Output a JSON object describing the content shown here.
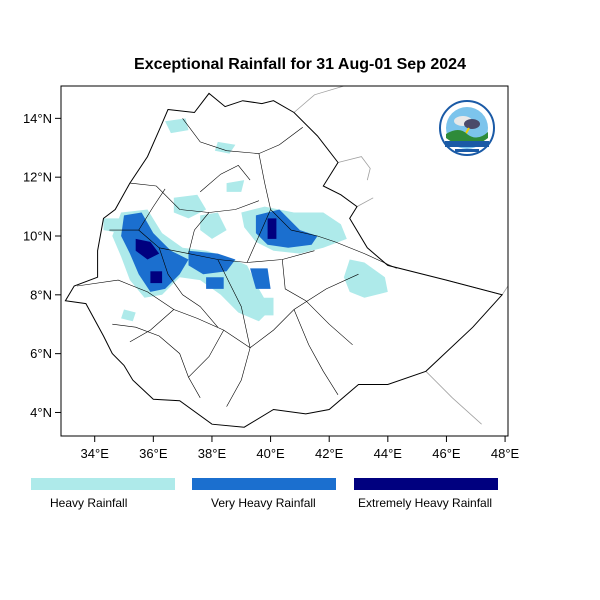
{
  "title": "Exceptional Rainfall for 31 Aug-01 Sep 2024",
  "axes": {
    "x_ticks": [
      {
        "value": 34,
        "label": "34°E"
      },
      {
        "value": 36,
        "label": "36°E"
      },
      {
        "value": 38,
        "label": "38°E"
      },
      {
        "value": 40,
        "label": "40°E"
      },
      {
        "value": 42,
        "label": "42°E"
      },
      {
        "value": 44,
        "label": "44°E"
      },
      {
        "value": 46,
        "label": "46°E"
      },
      {
        "value": 48,
        "label": "48°E"
      }
    ],
    "y_ticks": [
      {
        "value": 4,
        "label": "4°N"
      },
      {
        "value": 6,
        "label": "6°N"
      },
      {
        "value": 8,
        "label": "8°N"
      },
      {
        "value": 10,
        "label": "10°N"
      },
      {
        "value": 12,
        "label": "12°N"
      },
      {
        "value": 14,
        "label": "14°N"
      }
    ],
    "lon_range": [
      32.85,
      48.1
    ],
    "lat_range": [
      3.2,
      15.1
    ]
  },
  "legend": {
    "items": [
      {
        "label": "Heavy Rainfall",
        "color": "#aeeaea"
      },
      {
        "label": "Very Heavy Rainfall",
        "color": "#1b6fcf"
      },
      {
        "label": "Extremely Heavy Rainfall",
        "color": "#00007f"
      }
    ]
  },
  "logo": {
    "icon": "meteorology-agency-logo"
  },
  "colors": {
    "boundary": "#000000",
    "neighbor_boundary": "#a0a0a0"
  },
  "ethiopia_outline": [
    [
      36.5,
      14.3
    ],
    [
      37.4,
      14.2
    ],
    [
      37.9,
      14.85
    ],
    [
      38.45,
      14.4
    ],
    [
      39.05,
      14.6
    ],
    [
      39.7,
      14.5
    ],
    [
      40.1,
      14.6
    ],
    [
      40.8,
      14.2
    ],
    [
      41.6,
      13.4
    ],
    [
      42.3,
      12.5
    ],
    [
      41.8,
      11.7
    ],
    [
      42.4,
      11.4
    ],
    [
      42.95,
      11.0
    ],
    [
      42.7,
      10.6
    ],
    [
      43.3,
      9.6
    ],
    [
      44.0,
      9.0
    ],
    [
      46.0,
      8.5
    ],
    [
      47.9,
      8.0
    ],
    [
      46.9,
      6.9
    ],
    [
      45.3,
      5.4
    ],
    [
      44.0,
      4.95
    ],
    [
      43.0,
      4.95
    ],
    [
      42.0,
      4.1
    ],
    [
      41.2,
      3.95
    ],
    [
      40.1,
      4.1
    ],
    [
      39.1,
      3.5
    ],
    [
      38.0,
      3.6
    ],
    [
      36.9,
      4.4
    ],
    [
      36.0,
      4.45
    ],
    [
      35.3,
      5.1
    ],
    [
      35.0,
      5.6
    ],
    [
      34.6,
      6.0
    ],
    [
      34.3,
      6.6
    ],
    [
      33.7,
      7.7
    ],
    [
      33.0,
      7.8
    ],
    [
      33.3,
      8.3
    ],
    [
      34.1,
      8.6
    ],
    [
      34.1,
      9.5
    ],
    [
      34.3,
      10.6
    ],
    [
      34.7,
      10.9
    ],
    [
      35.2,
      11.8
    ],
    [
      35.8,
      12.7
    ],
    [
      36.2,
      13.6
    ],
    [
      36.5,
      14.3
    ]
  ],
  "neighbor_borders": [
    [
      [
        40.8,
        14.2
      ],
      [
        41.5,
        14.8
      ],
      [
        42.5,
        15.1
      ]
    ],
    [
      [
        42.3,
        12.5
      ],
      [
        43.1,
        12.7
      ],
      [
        43.4,
        12.3
      ],
      [
        43.3,
        11.9
      ]
    ],
    [
      [
        42.95,
        11.0
      ],
      [
        43.5,
        11.3
      ]
    ],
    [
      [
        46.0,
        8.5
      ],
      [
        47.9,
        8.0
      ],
      [
        48.1,
        8.3
      ]
    ],
    [
      [
        45.3,
        5.4
      ],
      [
        46.2,
        4.5
      ],
      [
        47.2,
        3.6
      ]
    ]
  ],
  "region_borders": [
    [
      [
        37.0,
        14.0
      ],
      [
        37.6,
        13.2
      ],
      [
        38.5,
        12.9
      ],
      [
        39.6,
        12.8
      ],
      [
        40.3,
        13.1
      ],
      [
        41.1,
        13.7
      ]
    ],
    [
      [
        39.6,
        12.8
      ],
      [
        39.8,
        11.8
      ],
      [
        40.0,
        10.9
      ],
      [
        40.7,
        10.2
      ],
      [
        41.6,
        10.0
      ],
      [
        42.2,
        9.8
      ]
    ],
    [
      [
        35.2,
        11.8
      ],
      [
        36.1,
        11.7
      ],
      [
        36.9,
        10.9
      ],
      [
        37.9,
        10.8
      ],
      [
        38.8,
        10.9
      ],
      [
        39.6,
        11.2
      ]
    ],
    [
      [
        34.5,
        10.2
      ],
      [
        35.5,
        10.2
      ],
      [
        36.2,
        9.6
      ],
      [
        37.2,
        9.4
      ],
      [
        38.2,
        9.2
      ],
      [
        39.2,
        9.1
      ],
      [
        40.4,
        9.2
      ],
      [
        41.5,
        9.5
      ]
    ],
    [
      [
        33.4,
        8.3
      ],
      [
        34.8,
        8.5
      ],
      [
        35.8,
        8.1
      ],
      [
        36.7,
        7.5
      ],
      [
        37.5,
        7.2
      ],
      [
        38.4,
        6.8
      ],
      [
        39.3,
        6.2
      ]
    ],
    [
      [
        39.3,
        6.2
      ],
      [
        40.1,
        6.8
      ],
      [
        40.8,
        7.5
      ],
      [
        41.9,
        8.2
      ],
      [
        43.0,
        8.7
      ]
    ],
    [
      [
        36.2,
        9.6
      ],
      [
        36.5,
        8.7
      ],
      [
        37.0,
        8.0
      ],
      [
        37.6,
        7.6
      ],
      [
        38.2,
        6.9
      ]
    ],
    [
      [
        38.2,
        9.2
      ],
      [
        38.6,
        8.4
      ],
      [
        39.0,
        7.6
      ],
      [
        39.3,
        6.2
      ],
      [
        39.0,
        5.1
      ],
      [
        38.5,
        4.2
      ]
    ],
    [
      [
        40.8,
        7.5
      ],
      [
        41.3,
        6.3
      ],
      [
        41.8,
        5.4
      ],
      [
        42.3,
        4.6
      ]
    ],
    [
      [
        34.6,
        7.0
      ],
      [
        35.4,
        6.9
      ],
      [
        36.2,
        6.6
      ],
      [
        36.9,
        6.0
      ],
      [
        37.2,
        5.2
      ],
      [
        37.6,
        4.5
      ]
    ],
    [
      [
        37.6,
        11.5
      ],
      [
        38.3,
        12.1
      ],
      [
        38.9,
        12.4
      ],
      [
        39.3,
        11.9
      ]
    ],
    [
      [
        35.5,
        10.2
      ],
      [
        36.0,
        11.0
      ],
      [
        36.4,
        11.6
      ]
    ],
    [
      [
        37.2,
        9.4
      ],
      [
        37.4,
        10.2
      ],
      [
        37.9,
        10.8
      ]
    ],
    [
      [
        40.4,
        9.2
      ],
      [
        40.5,
        8.2
      ],
      [
        41.2,
        7.8
      ],
      [
        42.0,
        7.0
      ],
      [
        42.8,
        6.3
      ]
    ],
    [
      [
        36.7,
        7.5
      ],
      [
        35.9,
        6.8
      ],
      [
        35.2,
        6.4
      ]
    ],
    [
      [
        38.4,
        6.8
      ],
      [
        37.9,
        5.9
      ],
      [
        37.2,
        5.2
      ]
    ],
    [
      [
        42.2,
        9.8
      ],
      [
        43.2,
        9.4
      ],
      [
        44.3,
        8.9
      ]
    ],
    [
      [
        39.2,
        9.1
      ],
      [
        39.6,
        10.0
      ],
      [
        40.0,
        10.9
      ]
    ]
  ],
  "rain_areas": [
    {
      "level": 1,
      "polygon": [
        [
          34.9,
          10.8
        ],
        [
          35.8,
          10.9
        ],
        [
          36.3,
          10.1
        ],
        [
          37.0,
          9.6
        ],
        [
          37.8,
          9.5
        ],
        [
          38.5,
          9.3
        ],
        [
          39.2,
          9.0
        ],
        [
          39.6,
          8.2
        ],
        [
          40.0,
          7.5
        ],
        [
          39.6,
          7.1
        ],
        [
          38.9,
          7.4
        ],
        [
          38.3,
          8.0
        ],
        [
          37.6,
          8.5
        ],
        [
          36.9,
          8.6
        ],
        [
          36.3,
          8.0
        ],
        [
          35.7,
          7.9
        ],
        [
          35.2,
          8.5
        ],
        [
          34.9,
          9.3
        ],
        [
          34.6,
          10.0
        ]
      ]
    },
    {
      "level": 1,
      "polygon": [
        [
          39.0,
          10.8
        ],
        [
          39.8,
          11.0
        ],
        [
          40.8,
          10.8
        ],
        [
          41.8,
          10.8
        ],
        [
          42.4,
          10.4
        ],
        [
          42.6,
          9.9
        ],
        [
          41.8,
          9.6
        ],
        [
          41.0,
          9.4
        ],
        [
          40.1,
          9.5
        ],
        [
          39.5,
          9.8
        ],
        [
          39.1,
          10.3
        ]
      ]
    },
    {
      "level": 1,
      "polygon": [
        [
          42.7,
          9.2
        ],
        [
          43.2,
          9.1
        ],
        [
          43.9,
          8.6
        ],
        [
          44.0,
          8.1
        ],
        [
          43.2,
          7.9
        ],
        [
          42.7,
          8.1
        ],
        [
          42.5,
          8.6
        ]
      ]
    },
    {
      "level": 1,
      "polygon": [
        [
          36.7,
          11.3
        ],
        [
          37.5,
          11.4
        ],
        [
          37.8,
          10.9
        ],
        [
          37.2,
          10.6
        ],
        [
          36.7,
          10.8
        ]
      ]
    },
    {
      "level": 1,
      "polygon": [
        [
          37.6,
          10.7
        ],
        [
          38.2,
          10.8
        ],
        [
          38.5,
          10.2
        ],
        [
          38.0,
          9.9
        ],
        [
          37.6,
          10.2
        ]
      ]
    },
    {
      "level": 1,
      "polygon": [
        [
          36.4,
          13.9
        ],
        [
          37.1,
          14.0
        ],
        [
          37.2,
          13.6
        ],
        [
          36.6,
          13.5
        ]
      ]
    },
    {
      "level": 1,
      "polygon": [
        [
          38.2,
          13.2
        ],
        [
          38.8,
          13.1
        ],
        [
          38.6,
          12.8
        ],
        [
          38.1,
          12.9
        ]
      ]
    },
    {
      "level": 1,
      "polygon": [
        [
          38.5,
          11.8
        ],
        [
          39.1,
          11.9
        ],
        [
          39.0,
          11.5
        ],
        [
          38.5,
          11.5
        ]
      ]
    },
    {
      "level": 1,
      "polygon": [
        [
          35.0,
          7.5
        ],
        [
          35.4,
          7.4
        ],
        [
          35.3,
          7.1
        ],
        [
          34.9,
          7.2
        ]
      ]
    },
    {
      "level": 1,
      "polygon": [
        [
          39.4,
          7.9
        ],
        [
          40.1,
          7.9
        ],
        [
          40.1,
          7.3
        ],
        [
          39.4,
          7.3
        ]
      ]
    },
    {
      "level": 1,
      "polygon": [
        [
          34.3,
          10.6
        ],
        [
          34.9,
          10.6
        ],
        [
          34.9,
          10.1
        ],
        [
          34.3,
          10.2
        ]
      ]
    },
    {
      "level": 2,
      "polygon": [
        [
          35.0,
          10.7
        ],
        [
          35.6,
          10.8
        ],
        [
          36.0,
          10.1
        ],
        [
          36.6,
          9.5
        ],
        [
          37.2,
          9.2
        ],
        [
          36.9,
          8.7
        ],
        [
          36.4,
          8.2
        ],
        [
          35.9,
          8.1
        ],
        [
          35.5,
          8.7
        ],
        [
          35.2,
          9.4
        ],
        [
          34.9,
          10.0
        ]
      ]
    },
    {
      "level": 2,
      "polygon": [
        [
          37.2,
          9.5
        ],
        [
          38.2,
          9.4
        ],
        [
          38.8,
          9.2
        ],
        [
          38.5,
          8.8
        ],
        [
          37.7,
          8.7
        ],
        [
          37.2,
          9.0
        ]
      ]
    },
    {
      "level": 2,
      "polygon": [
        [
          39.5,
          10.7
        ],
        [
          40.3,
          10.9
        ],
        [
          41.0,
          10.2
        ],
        [
          41.6,
          10.0
        ],
        [
          41.4,
          9.7
        ],
        [
          40.6,
          9.6
        ],
        [
          39.9,
          9.7
        ],
        [
          39.5,
          10.1
        ]
      ]
    },
    {
      "level": 2,
      "polygon": [
        [
          39.3,
          8.9
        ],
        [
          39.9,
          8.9
        ],
        [
          40.0,
          8.2
        ],
        [
          39.5,
          8.2
        ]
      ]
    },
    {
      "level": 2,
      "polygon": [
        [
          37.8,
          8.6
        ],
        [
          38.4,
          8.6
        ],
        [
          38.4,
          8.2
        ],
        [
          37.8,
          8.2
        ]
      ]
    },
    {
      "level": 3,
      "polygon": [
        [
          35.4,
          9.9
        ],
        [
          35.9,
          9.8
        ],
        [
          36.2,
          9.4
        ],
        [
          35.8,
          9.2
        ],
        [
          35.4,
          9.5
        ]
      ]
    },
    {
      "level": 3,
      "polygon": [
        [
          35.9,
          8.8
        ],
        [
          36.3,
          8.8
        ],
        [
          36.3,
          8.4
        ],
        [
          35.9,
          8.4
        ]
      ]
    },
    {
      "level": 3,
      "polygon": [
        [
          39.9,
          10.6
        ],
        [
          40.2,
          10.6
        ],
        [
          40.2,
          9.9
        ],
        [
          39.9,
          9.9
        ]
      ]
    }
  ]
}
